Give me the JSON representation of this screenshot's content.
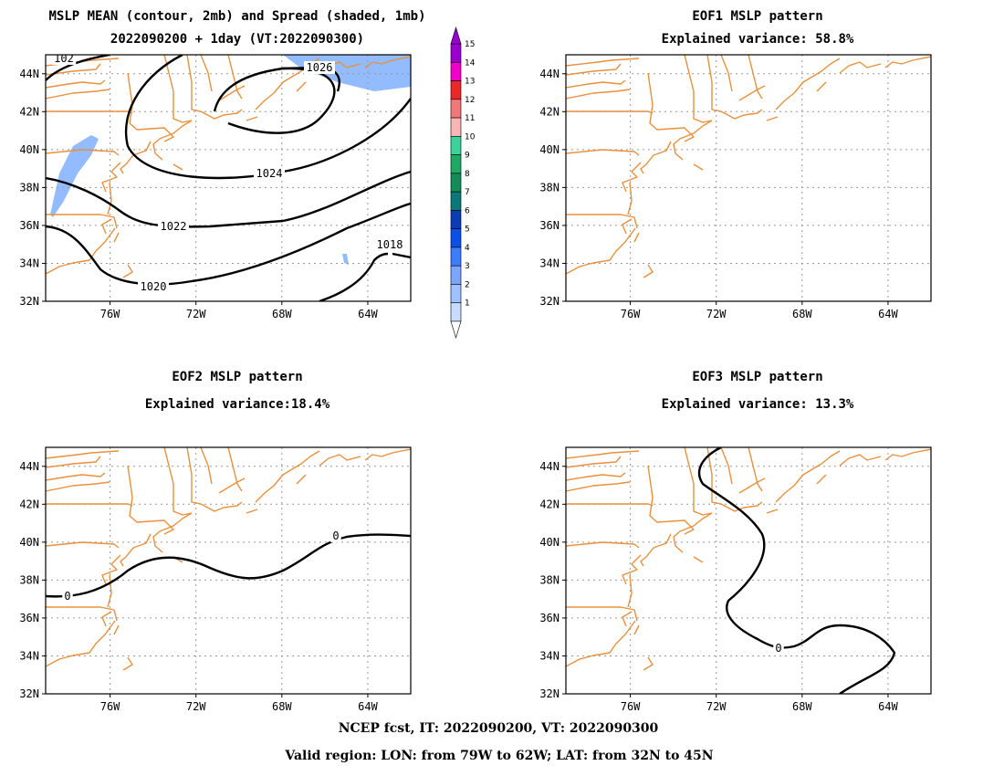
{
  "footer": {
    "line1": "NCEP fcst, IT: 2022090200, VT: 2022090300",
    "line2": "Valid region: LON: from 79W to 62W; LAT: from 32N to 45N"
  },
  "colorbar": {
    "labels": [
      "1",
      "2",
      "3",
      "4",
      "5",
      "6",
      "7",
      "8",
      "9",
      "10",
      "11",
      "12",
      "13",
      "14",
      "15"
    ],
    "colors": [
      "#c8dcff",
      "#9dc2ff",
      "#7aa6ff",
      "#3c7cff",
      "#0a50e6",
      "#0a3cb4",
      "#0a7878",
      "#148c5a",
      "#1eaa64",
      "#3cd29a",
      "#fab4b4",
      "#f07878",
      "#eb2828",
      "#f000c8",
      "#9a00d0"
    ]
  },
  "panels": [
    {
      "id": "mean",
      "title_line1": "MSLP MEAN (contour, 2mb) and Spread (shaded, 1mb)",
      "title_line2": "2022090200 + 1day (VT:2022090300)",
      "contour_labels": [
        "1026",
        "1024",
        "1022",
        "1020",
        "1018",
        "102"
      ]
    },
    {
      "id": "eof1",
      "title_line1": "EOF1 MSLP pattern",
      "title_line2": "Explained variance: 58.8%",
      "contour_labels": []
    },
    {
      "id": "eof2",
      "title_line1": "EOF2 MSLP pattern",
      "title_line2": "Explained variance:18.4%",
      "contour_labels": [
        "0",
        "0"
      ]
    },
    {
      "id": "eof3",
      "title_line1": "EOF3 MSLP pattern",
      "title_line2": "Explained variance: 13.3%",
      "contour_labels": [
        "0"
      ]
    }
  ],
  "axes": {
    "lat_labels": [
      "44N",
      "42N",
      "40N",
      "38N",
      "36N",
      "34N",
      "32N"
    ],
    "lat_values": [
      44,
      42,
      40,
      38,
      36,
      34,
      32
    ],
    "lon_labels": [
      "76W",
      "72W",
      "68W",
      "64W"
    ],
    "lon_values": [
      -76,
      -72,
      -68,
      -64
    ],
    "lon_range": [
      -79,
      -62
    ],
    "lat_range": [
      32,
      45
    ]
  }
}
